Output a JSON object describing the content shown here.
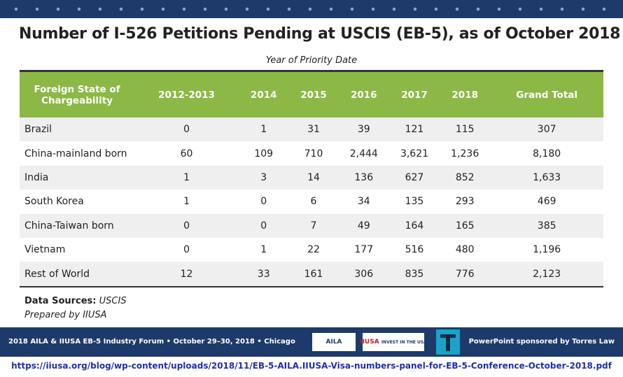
{
  "title": "Number of I-526 Petitions Pending at USCIS (EB-5), as of October 2018",
  "table": {
    "caption": "Year of Priority Date",
    "header": [
      "Foreign State of Chargeability",
      "2012-2013",
      "2014",
      "2015",
      "2016",
      "2017",
      "2018",
      "Grand Total"
    ],
    "rows": [
      [
        "Brazil",
        "0",
        "1",
        "31",
        "39",
        "121",
        "115",
        "307"
      ],
      [
        "China-mainland born",
        "60",
        "109",
        "710",
        "2,444",
        "3,621",
        "1,236",
        "8,180"
      ],
      [
        "India",
        "1",
        "3",
        "14",
        "136",
        "627",
        "852",
        "1,633"
      ],
      [
        "South Korea",
        "1",
        "0",
        "6",
        "34",
        "135",
        "293",
        "469"
      ],
      [
        "China-Taiwan born",
        "0",
        "0",
        "7",
        "49",
        "164",
        "165",
        "385"
      ],
      [
        "Vietnam",
        "0",
        "1",
        "22",
        "177",
        "516",
        "480",
        "1,196"
      ],
      [
        "Rest of World",
        "12",
        "33",
        "161",
        "306",
        "835",
        "776",
        "2,123"
      ]
    ]
  },
  "sources": {
    "label": "Data Sources:",
    "source": "USCIS",
    "prepared": "Prepared by IIUSA"
  },
  "footer": {
    "event": "2018 AILA & IIUSA EB-5 Industry Forum • October 29–30, 2018 • Chicago",
    "logo1": "AILA",
    "logo2": "IIUSA",
    "logo2_tag": "INVEST IN THE USA",
    "sponsor": "PowerPoint sponsored by Torres Law"
  },
  "url": "https://iiusa.org/blog/wp-content/uploads/2018/11/EB-5-AILA.IIUSA-Visa-numbers-panel-for-EB-5-Conference-October-2018.pdf"
}
